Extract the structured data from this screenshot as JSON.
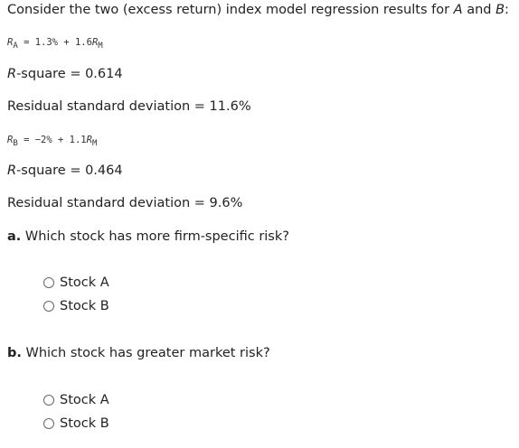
{
  "intro": [
    "Consider the two (excess return) index model regression results for ",
    "A",
    " and ",
    "B",
    ":"
  ],
  "stocks": [
    {
      "equation": [
        "R",
        "A",
        " = 1.3% + 1.6",
        "R",
        "M"
      ],
      "r_square": [
        "R",
        "-square = 0.614"
      ],
      "residual": "Residual standard deviation = 11.6%"
    },
    {
      "equation": [
        "R",
        "B",
        " = −2% + 1.1",
        "R",
        "M"
      ],
      "r_square": [
        "R",
        "-square = 0.464"
      ],
      "residual": "Residual standard deviation = 9.6%"
    }
  ],
  "questions": [
    {
      "label": "a.",
      "text": " Which stock has more firm-specific risk?",
      "options": [
        "Stock A",
        "Stock B"
      ]
    },
    {
      "label": "b.",
      "text": " Which stock has greater market risk?",
      "options": [
        "Stock A",
        "Stock B"
      ]
    }
  ]
}
